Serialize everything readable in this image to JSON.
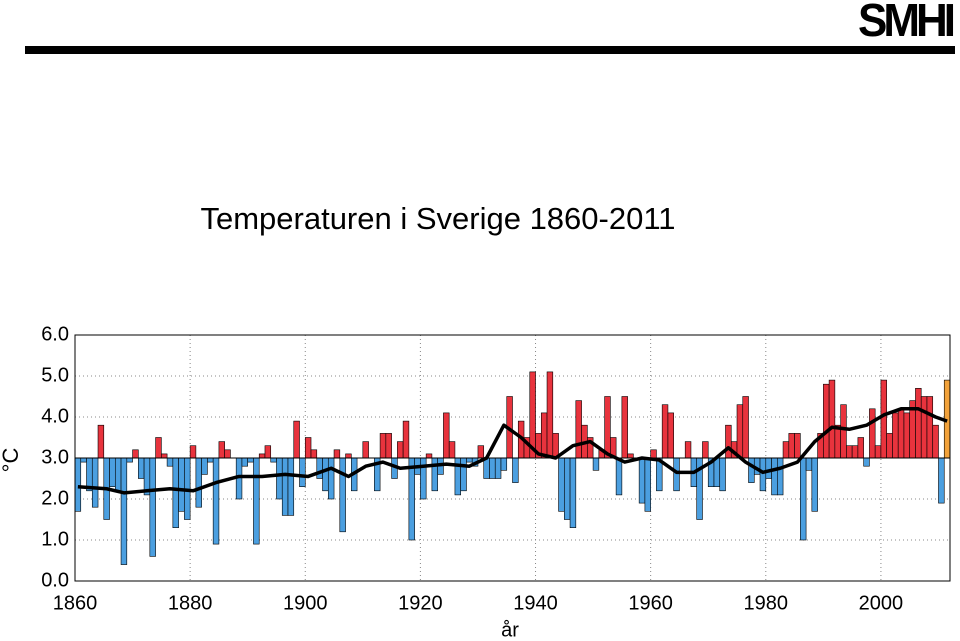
{
  "chart_data": {
    "type": "bar",
    "logo": "SMHI",
    "title": "Temperaturen i Sverige 1860-2011",
    "ylabel": "°C",
    "xlabel": "år",
    "start_year": 1860,
    "baseline": 3.0,
    "above_color": "#e8333d",
    "below_color": "#4b9fe0",
    "last_color": "#f2a23a",
    "values": [
      1.7,
      2.9,
      2.2,
      1.8,
      3.8,
      1.5,
      2.3,
      2.2,
      0.4,
      2.9,
      3.2,
      2.5,
      2.1,
      0.6,
      3.5,
      3.1,
      2.8,
      1.3,
      1.7,
      1.5,
      3.3,
      1.8,
      2.6,
      2.9,
      0.9,
      3.4,
      3.2,
      3.0,
      2.0,
      2.8,
      2.9,
      0.9,
      3.1,
      3.3,
      2.9,
      2.0,
      1.6,
      1.6,
      3.9,
      2.3,
      3.5,
      3.2,
      2.5,
      2.2,
      2.0,
      3.2,
      1.2,
      3.1,
      2.2,
      3.0,
      3.4,
      3.0,
      2.2,
      3.6,
      3.6,
      2.5,
      3.4,
      3.9,
      1.0,
      2.6,
      2.0,
      3.1,
      2.2,
      2.6,
      4.1,
      3.4,
      2.1,
      2.2,
      2.9,
      2.8,
      3.3,
      2.5,
      2.5,
      2.5,
      2.7,
      4.5,
      2.4,
      3.9,
      3.5,
      5.1,
      3.6,
      4.1,
      5.1,
      3.6,
      1.7,
      1.5,
      1.3,
      4.4,
      3.8,
      3.5,
      2.7,
      3.2,
      4.5,
      3.5,
      2.1,
      4.5,
      3.1,
      3.0,
      1.9,
      1.7,
      3.2,
      2.2,
      4.3,
      4.1,
      2.2,
      3.0,
      3.4,
      2.3,
      1.5,
      3.4,
      2.3,
      2.3,
      2.2,
      3.8,
      3.4,
      4.3,
      4.5,
      2.4,
      2.6,
      2.2,
      2.5,
      2.1,
      2.1,
      3.4,
      3.6,
      3.6,
      1.0,
      2.7,
      1.7,
      3.6,
      4.8,
      4.9,
      3.8,
      4.3,
      3.3,
      3.3,
      3.5,
      2.8,
      4.2,
      3.3,
      4.9,
      3.6,
      4.1,
      4.2,
      4.1,
      4.4,
      4.7,
      4.5,
      4.5,
      3.8,
      1.9,
      4.9
    ],
    "trend": {
      "color": "#000000",
      "x": [
        1860,
        1865,
        1868,
        1872,
        1876,
        1880,
        1884,
        1888,
        1892,
        1896,
        1900,
        1904,
        1907,
        1910,
        1913,
        1916,
        1920,
        1924,
        1928,
        1931,
        1934,
        1937,
        1940,
        1943,
        1946,
        1949,
        1952,
        1955,
        1958,
        1961,
        1964,
        1967,
        1970,
        1973,
        1976,
        1979,
        1982,
        1985,
        1988,
        1991,
        1994,
        1997,
        2000,
        2003,
        2006,
        2009,
        2011
      ],
      "values": [
        2.3,
        2.25,
        2.15,
        2.2,
        2.25,
        2.2,
        2.4,
        2.55,
        2.55,
        2.6,
        2.55,
        2.75,
        2.55,
        2.8,
        2.9,
        2.75,
        2.8,
        2.85,
        2.8,
        3.0,
        3.8,
        3.5,
        3.1,
        3.0,
        3.3,
        3.4,
        3.1,
        2.9,
        3.0,
        2.95,
        2.65,
        2.65,
        2.9,
        3.25,
        2.9,
        2.65,
        2.75,
        2.9,
        3.4,
        3.75,
        3.7,
        3.8,
        4.05,
        4.2,
        4.2,
        4.0,
        3.9
      ]
    },
    "xlim": [
      1860,
      2012
    ],
    "ylim": [
      0,
      6
    ],
    "xticks": [
      1860,
      1880,
      1900,
      1920,
      1940,
      1960,
      1980,
      2000
    ],
    "yticks": [
      {
        "value": 0,
        "label": "0.0"
      },
      {
        "value": 1,
        "label": "1.0"
      },
      {
        "value": 2,
        "label": "2.0"
      },
      {
        "value": 3,
        "label": "3.0"
      },
      {
        "value": 4,
        "label": "4.0"
      },
      {
        "value": 5,
        "label": "5.0"
      },
      {
        "value": 6,
        "label": "6.0"
      }
    ],
    "grid": true
  }
}
